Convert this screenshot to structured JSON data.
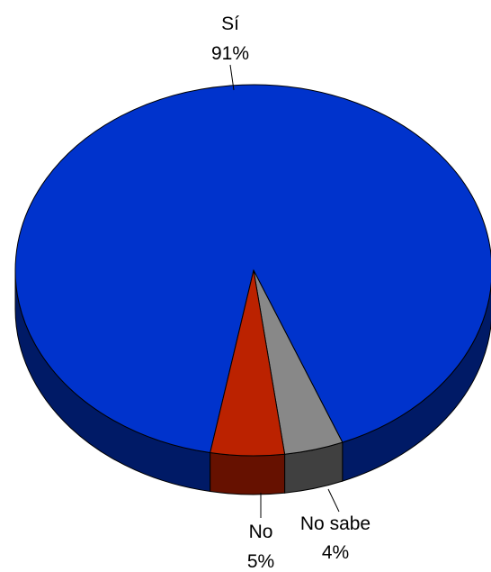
{
  "chart_data": {
    "type": "pie",
    "style": "3d",
    "slices": [
      {
        "label": "Sí",
        "value": 91,
        "pct_label": "91%",
        "color": "#0033cc",
        "side_color": "#001a66"
      },
      {
        "label": "No sabe",
        "value": 4,
        "pct_label": "4%",
        "color": "#888888",
        "side_color": "#404040"
      },
      {
        "label": "No",
        "value": 5,
        "pct_label": "5%",
        "color": "#bb2200",
        "side_color": "#661100"
      }
    ]
  }
}
